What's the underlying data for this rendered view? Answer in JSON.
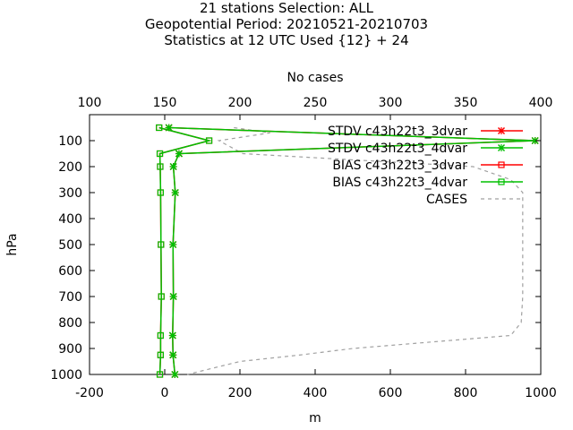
{
  "chart_data": {
    "type": "line",
    "title_lines": [
      "21 stations Selection: ALL",
      "Geopotential  Period: 20210521-20210703",
      "Statistics at 12 UTC  Used {12} + 24"
    ],
    "xlabel": "m",
    "ylabel": "hPa",
    "x2label": "No cases",
    "xlim": [
      -200,
      1000
    ],
    "ylim": [
      1000,
      0
    ],
    "x2lim": [
      100,
      400
    ],
    "x_ticks": [
      -200,
      0,
      200,
      400,
      600,
      800,
      1000
    ],
    "x2_ticks": [
      100,
      150,
      200,
      250,
      300,
      350,
      400
    ],
    "y_ticks": [
      100,
      200,
      300,
      400,
      500,
      600,
      700,
      800,
      900,
      1000
    ],
    "levels": [
      50,
      100,
      150,
      200,
      300,
      500,
      700,
      850,
      925,
      1000
    ],
    "series": [
      {
        "name": "STDV c43h22t3_3dvar",
        "color": "#ff0000",
        "marker": "cross",
        "values": [
          11,
          985,
          38,
          23,
          28,
          22,
          23,
          21,
          22,
          27
        ]
      },
      {
        "name": "STDV c43h22t3_4dvar",
        "color": "#00c000",
        "marker": "cross",
        "values": [
          11,
          985,
          38,
          23,
          28,
          22,
          23,
          21,
          22,
          27
        ]
      },
      {
        "name": "BIAS c43h22t3_3dvar",
        "color": "#ff0000",
        "marker": "square",
        "values": [
          -15,
          118,
          -13,
          -12,
          -11,
          -10,
          -9,
          -11,
          -11,
          -13
        ]
      },
      {
        "name": "BIAS c43h22t3_4dvar",
        "color": "#00c000",
        "marker": "square",
        "values": [
          -15,
          118,
          -13,
          -12,
          -11,
          -10,
          -9,
          -11,
          -11,
          -13
        ]
      }
    ],
    "cases": {
      "name": "CASES",
      "color": "#a0a0a0",
      "levels": [
        50,
        70,
        100,
        150,
        200,
        250,
        300,
        400,
        500,
        600,
        700,
        800,
        850,
        900,
        925,
        950,
        1000
      ],
      "values": [
        196,
        220,
        186,
        202,
        355,
        380,
        388,
        388,
        388,
        388,
        388,
        387,
        380,
        275,
        240,
        200,
        165
      ]
    },
    "legend_position": "top-right",
    "grid": false
  }
}
